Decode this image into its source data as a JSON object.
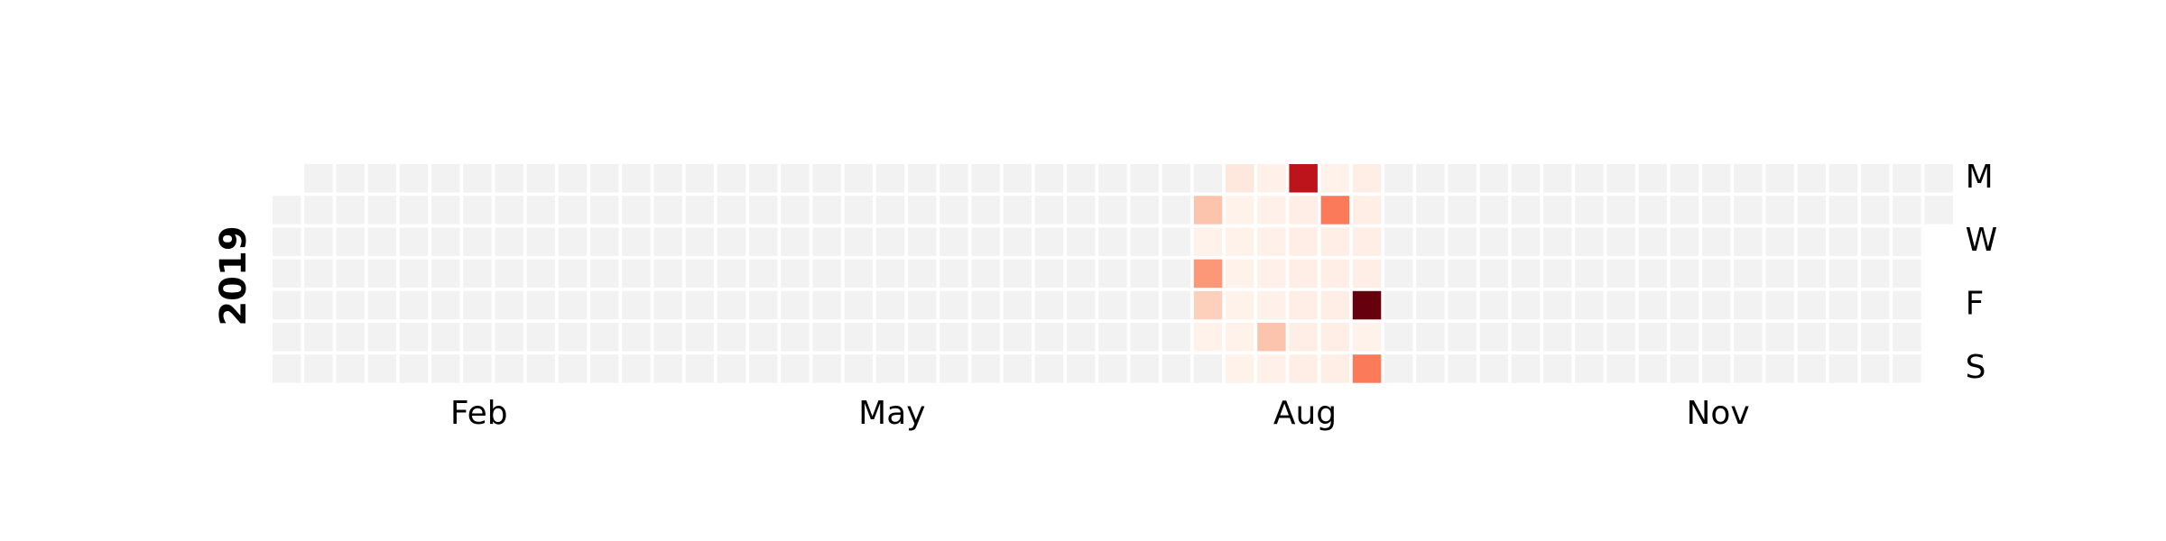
{
  "chart_data": {
    "type": "heatmap",
    "year": "2019",
    "first_weekday": "Tuesday",
    "days": 365,
    "month_labels": [
      "Feb",
      "May",
      "Aug",
      "Nov"
    ],
    "day_labels": [
      "M",
      "W",
      "F",
      "S"
    ],
    "empty_color": "#f2f2f2",
    "colormap": [
      "#fff5f0",
      "#fee0d2",
      "#fcbba1",
      "#fc9272",
      "#fb6a4a",
      "#ef3b2c",
      "#cb181d",
      "#a50f15",
      "#67000d"
    ],
    "vmax": 1.0,
    "values": {
      "2019-07-23": 0.22,
      "2019-07-24": 0.02,
      "2019-07-25": 0.36,
      "2019-07-26": 0.18,
      "2019-07-27": 0.02,
      "2019-07-29": 0.08,
      "2019-07-30": 0.02,
      "2019-07-31": 0.02,
      "2019-08-01": 0.02,
      "2019-08-02": 0.02,
      "2019-08-03": 0.02,
      "2019-08-04": 0.02,
      "2019-08-05": 0.03,
      "2019-08-06": 0.03,
      "2019-08-07": 0.03,
      "2019-08-08": 0.03,
      "2019-08-09": 0.03,
      "2019-08-10": 0.22,
      "2019-08-11": 0.03,
      "2019-08-12": 0.8,
      "2019-08-13": 0.04,
      "2019-08-14": 0.04,
      "2019-08-15": 0.04,
      "2019-08-16": 0.04,
      "2019-08-17": 0.04,
      "2019-08-18": 0.04,
      "2019-08-19": 0.02,
      "2019-08-20": 0.45,
      "2019-08-21": 0.04,
      "2019-08-22": 0.04,
      "2019-08-23": 0.04,
      "2019-08-24": 0.04,
      "2019-08-25": 0.04,
      "2019-08-26": 0.04,
      "2019-08-27": 0.04,
      "2019-08-28": 0.04,
      "2019-08-29": 0.04,
      "2019-08-30": 1.0,
      "2019-08-31": 0.02,
      "2019-09-01": 0.45
    }
  }
}
